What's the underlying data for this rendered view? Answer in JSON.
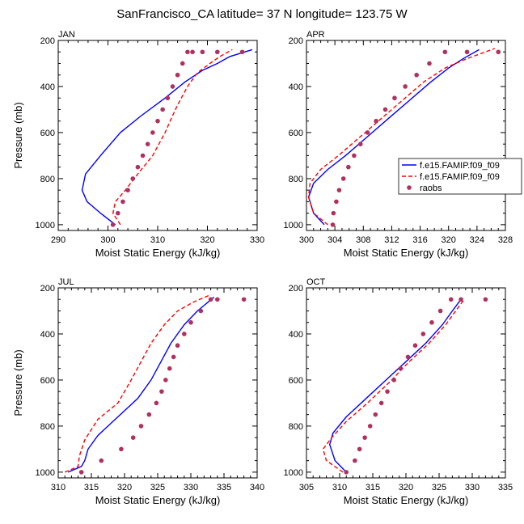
{
  "figure_title": "SanFrancisco_CA  latitude= 37 N longitude= 123.75 W",
  "colors": {
    "series1": "#0000ff",
    "series2": "#ff0000",
    "raobs": "#b03060"
  },
  "legend": {
    "entries": [
      "f.e15.FAMIP.f09_f09",
      "f.e15.FAMIP.f09_f09",
      "raobs"
    ]
  },
  "chart_data": [
    {
      "type": "line",
      "title": "JAN",
      "xlabel": "Moist Static Energy (kJ/kg)",
      "ylabel": "Pressure (mb)",
      "xlim": [
        290,
        330
      ],
      "ylim": [
        200,
        1025
      ],
      "xticks": [
        290,
        300,
        310,
        320,
        330
      ],
      "yticks": [
        200,
        400,
        600,
        800,
        1000
      ],
      "series": [
        {
          "name": "f.e15.FAMIP.f09_f09",
          "style": "solid",
          "x": [
            301.5,
            298.5,
            295.8,
            294.8,
            295.5,
            298.5,
            302.5,
            306.5,
            311.5,
            315.5,
            319.0,
            322.0,
            324.5,
            329.0
          ],
          "y": [
            1000,
            950,
            900,
            850,
            780,
            700,
            600,
            530,
            450,
            380,
            330,
            300,
            270,
            240
          ]
        },
        {
          "name": "f.e15.FAMIP.f09_f09",
          "style": "dashed",
          "x": [
            302.5,
            301.0,
            301.5,
            303.5,
            306.0,
            309.0,
            311.5,
            312.5,
            314.0,
            316.0,
            318.0,
            320.5,
            322.5,
            325.0
          ],
          "y": [
            1000,
            950,
            900,
            850,
            780,
            700,
            600,
            550,
            480,
            400,
            340,
            300,
            270,
            240
          ]
        }
      ],
      "raobs": {
        "x": [
          301.0,
          302.0,
          303.0,
          304.0,
          305.0,
          306.0,
          307.0,
          308.0,
          309.0,
          310.0,
          311.0,
          312.0,
          313.0,
          314.0,
          315.0,
          316.0,
          317.0,
          319.0,
          322.0,
          327.0
        ],
        "y": [
          1000,
          950,
          900,
          850,
          800,
          750,
          700,
          650,
          600,
          550,
          500,
          450,
          400,
          350,
          300,
          250,
          250,
          250,
          250,
          250
        ]
      }
    },
    {
      "type": "line",
      "title": "APR",
      "xlabel": "Moist Static Energy (kJ/kg)",
      "ylabel": "",
      "xlim": [
        300,
        328
      ],
      "ylim": [
        200,
        1025
      ],
      "xticks": [
        300,
        304,
        308,
        312,
        316,
        320,
        324,
        328
      ],
      "yticks": [
        200,
        400,
        600,
        800,
        1000
      ],
      "series": [
        {
          "name": "f.e15.FAMIP.f09_f09",
          "style": "solid",
          "x": [
            302.5,
            301.0,
            300.3,
            301.0,
            303.0,
            305.5,
            308.5,
            311.5,
            314.5,
            317.5,
            320.0,
            322.0,
            324.3
          ],
          "y": [
            1000,
            950,
            880,
            820,
            760,
            700,
            620,
            540,
            460,
            380,
            320,
            280,
            240
          ]
        },
        {
          "name": "f.e15.FAMIP.f09_f09",
          "style": "dashed",
          "x": [
            303.0,
            301.0,
            300.3,
            300.5,
            302.0,
            304.5,
            307.5,
            310.5,
            313.5,
            316.5,
            319.5,
            322.5,
            326.5
          ],
          "y": [
            1000,
            950,
            880,
            820,
            760,
            700,
            620,
            540,
            460,
            380,
            320,
            280,
            235
          ]
        }
      ],
      "raobs": {
        "x": [
          303.7,
          303.8,
          304.2,
          304.6,
          305.2,
          305.9,
          306.7,
          307.6,
          308.6,
          309.8,
          311.1,
          312.4,
          313.9,
          315.5,
          317.3,
          319.5,
          322.6,
          327.0
        ],
        "y": [
          1000,
          950,
          900,
          850,
          800,
          750,
          700,
          650,
          600,
          550,
          500,
          450,
          400,
          350,
          300,
          250,
          250,
          250
        ]
      }
    },
    {
      "type": "line",
      "title": "JUL",
      "xlabel": "Moist Static Energy (kJ/kg)",
      "ylabel": "Pressure (mb)",
      "xlim": [
        310,
        340
      ],
      "ylim": [
        200,
        1025
      ],
      "xticks": [
        310,
        315,
        320,
        325,
        330,
        335,
        340
      ],
      "yticks": [
        200,
        400,
        600,
        800,
        1000
      ],
      "series": [
        {
          "name": "f.e15.FAMIP.f09_f09",
          "style": "solid",
          "x": [
            311.5,
            313.5,
            314.0,
            314.5,
            316.0,
            319.0,
            322.0,
            324.0,
            325.5,
            327.0,
            329.0,
            331.0,
            333.5
          ],
          "y": [
            1000,
            975,
            950,
            900,
            840,
            760,
            680,
            600,
            520,
            440,
            360,
            300,
            240
          ]
        },
        {
          "name": "f.e15.FAMIP.f09_f09",
          "style": "dashed",
          "x": [
            311.0,
            313.0,
            313.2,
            314.0,
            316.0,
            319.0,
            321.0,
            322.5,
            324.0,
            326.0,
            328.0,
            330.5,
            333.0
          ],
          "y": [
            1000,
            975,
            930,
            860,
            770,
            700,
            600,
            520,
            440,
            360,
            300,
            260,
            230
          ]
        }
      ],
      "raobs": {
        "x": [
          313.5,
          316.5,
          319.5,
          321.3,
          322.5,
          323.7,
          324.8,
          325.6,
          326.2,
          326.8,
          327.4,
          328.0,
          329.0,
          330.0,
          331.5,
          333.0,
          334.0,
          338.0
        ],
        "y": [
          1000,
          950,
          900,
          850,
          800,
          750,
          700,
          650,
          600,
          550,
          500,
          450,
          400,
          350,
          300,
          250,
          250,
          250
        ]
      }
    },
    {
      "type": "line",
      "title": "OCT",
      "xlabel": "Moist Static Energy (kJ/kg)",
      "ylabel": "",
      "xlim": [
        305,
        335
      ],
      "ylim": [
        200,
        1025
      ],
      "xticks": [
        305,
        310,
        315,
        320,
        325,
        330,
        335
      ],
      "yticks": [
        200,
        400,
        600,
        800,
        1000
      ],
      "series": [
        {
          "name": "f.e15.FAMIP.f09_f09",
          "style": "solid",
          "x": [
            311.0,
            309.3,
            308.5,
            309.0,
            311.0,
            314.0,
            317.0,
            320.0,
            323.0,
            325.5,
            327.0,
            328.3
          ],
          "y": [
            1000,
            950,
            880,
            830,
            760,
            680,
            600,
            520,
            440,
            360,
            300,
            250
          ]
        },
        {
          "name": "f.e15.FAMIP.f09_f09",
          "style": "dashed",
          "x": [
            310.5,
            308.0,
            307.5,
            308.8,
            311.0,
            314.2,
            317.5,
            320.5,
            323.5,
            326.0,
            327.5,
            328.8
          ],
          "y": [
            1000,
            950,
            900,
            850,
            780,
            700,
            610,
            520,
            440,
            360,
            300,
            250
          ]
        }
      ],
      "raobs": {
        "x": [
          311.0,
          312.3,
          313.0,
          313.8,
          314.6,
          315.4,
          316.3,
          317.2,
          318.2,
          319.2,
          320.3,
          321.4,
          322.6,
          323.9,
          325.2,
          326.8,
          328.3,
          332.0
        ],
        "y": [
          1000,
          950,
          900,
          850,
          800,
          750,
          700,
          650,
          600,
          550,
          500,
          450,
          400,
          350,
          300,
          250,
          250,
          250
        ]
      }
    }
  ]
}
